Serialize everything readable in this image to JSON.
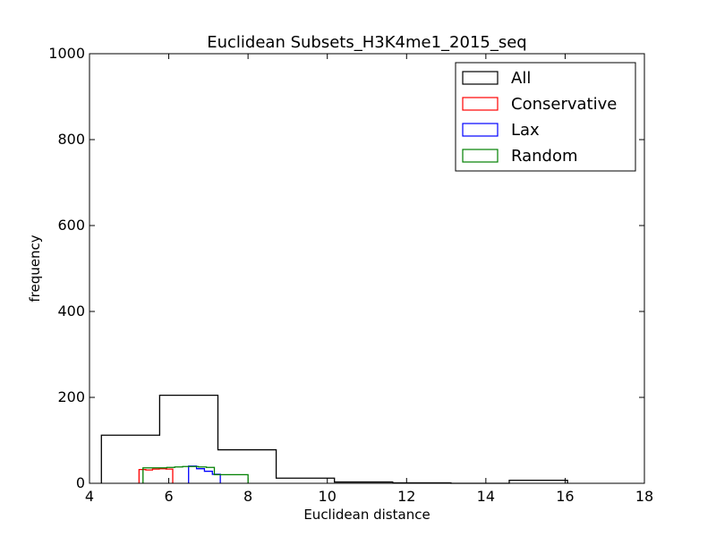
{
  "chart_data": {
    "type": "histogram",
    "title": "Euclidean Subsets_H3K4me1_2015_seq",
    "xlabel": "Euclidean distance",
    "ylabel": "frequency",
    "xlim": [
      4,
      18
    ],
    "ylim": [
      0,
      1000
    ],
    "xticks": [
      "4",
      "6",
      "8",
      "10",
      "12",
      "14",
      "16",
      "18"
    ],
    "yticks": [
      "0",
      "200",
      "400",
      "600",
      "800",
      "1000"
    ],
    "grid": false,
    "legend_position": "top-right",
    "series": [
      {
        "name": "All",
        "color": "#000000",
        "edges": [
          4.3,
          5.77,
          7.24,
          8.71,
          10.18,
          11.65,
          13.12,
          14.59,
          16.06
        ],
        "counts": [
          112,
          205,
          78,
          12,
          3,
          1,
          0,
          7
        ]
      },
      {
        "name": "Conservative",
        "color": "#ff0000",
        "edges": [
          5.25,
          5.42,
          5.59,
          5.76,
          5.93,
          6.1
        ],
        "counts": [
          32,
          31,
          33,
          34,
          33
        ]
      },
      {
        "name": "Lax",
        "color": "#0000ff",
        "edges": [
          6.5,
          6.7,
          6.9,
          7.1,
          7.3
        ],
        "counts": [
          40,
          34,
          28,
          21
        ]
      },
      {
        "name": "Random",
        "color": "#008000",
        "edges": [
          5.35,
          5.55,
          5.75,
          5.95,
          6.15,
          6.35,
          6.55,
          6.75,
          6.95,
          7.15,
          7.35,
          7.55,
          7.75,
          7.95,
          8.0
        ],
        "counts": [
          36,
          36,
          36,
          37,
          38,
          39,
          39,
          38,
          37,
          20,
          20,
          20,
          20,
          20
        ]
      }
    ]
  }
}
